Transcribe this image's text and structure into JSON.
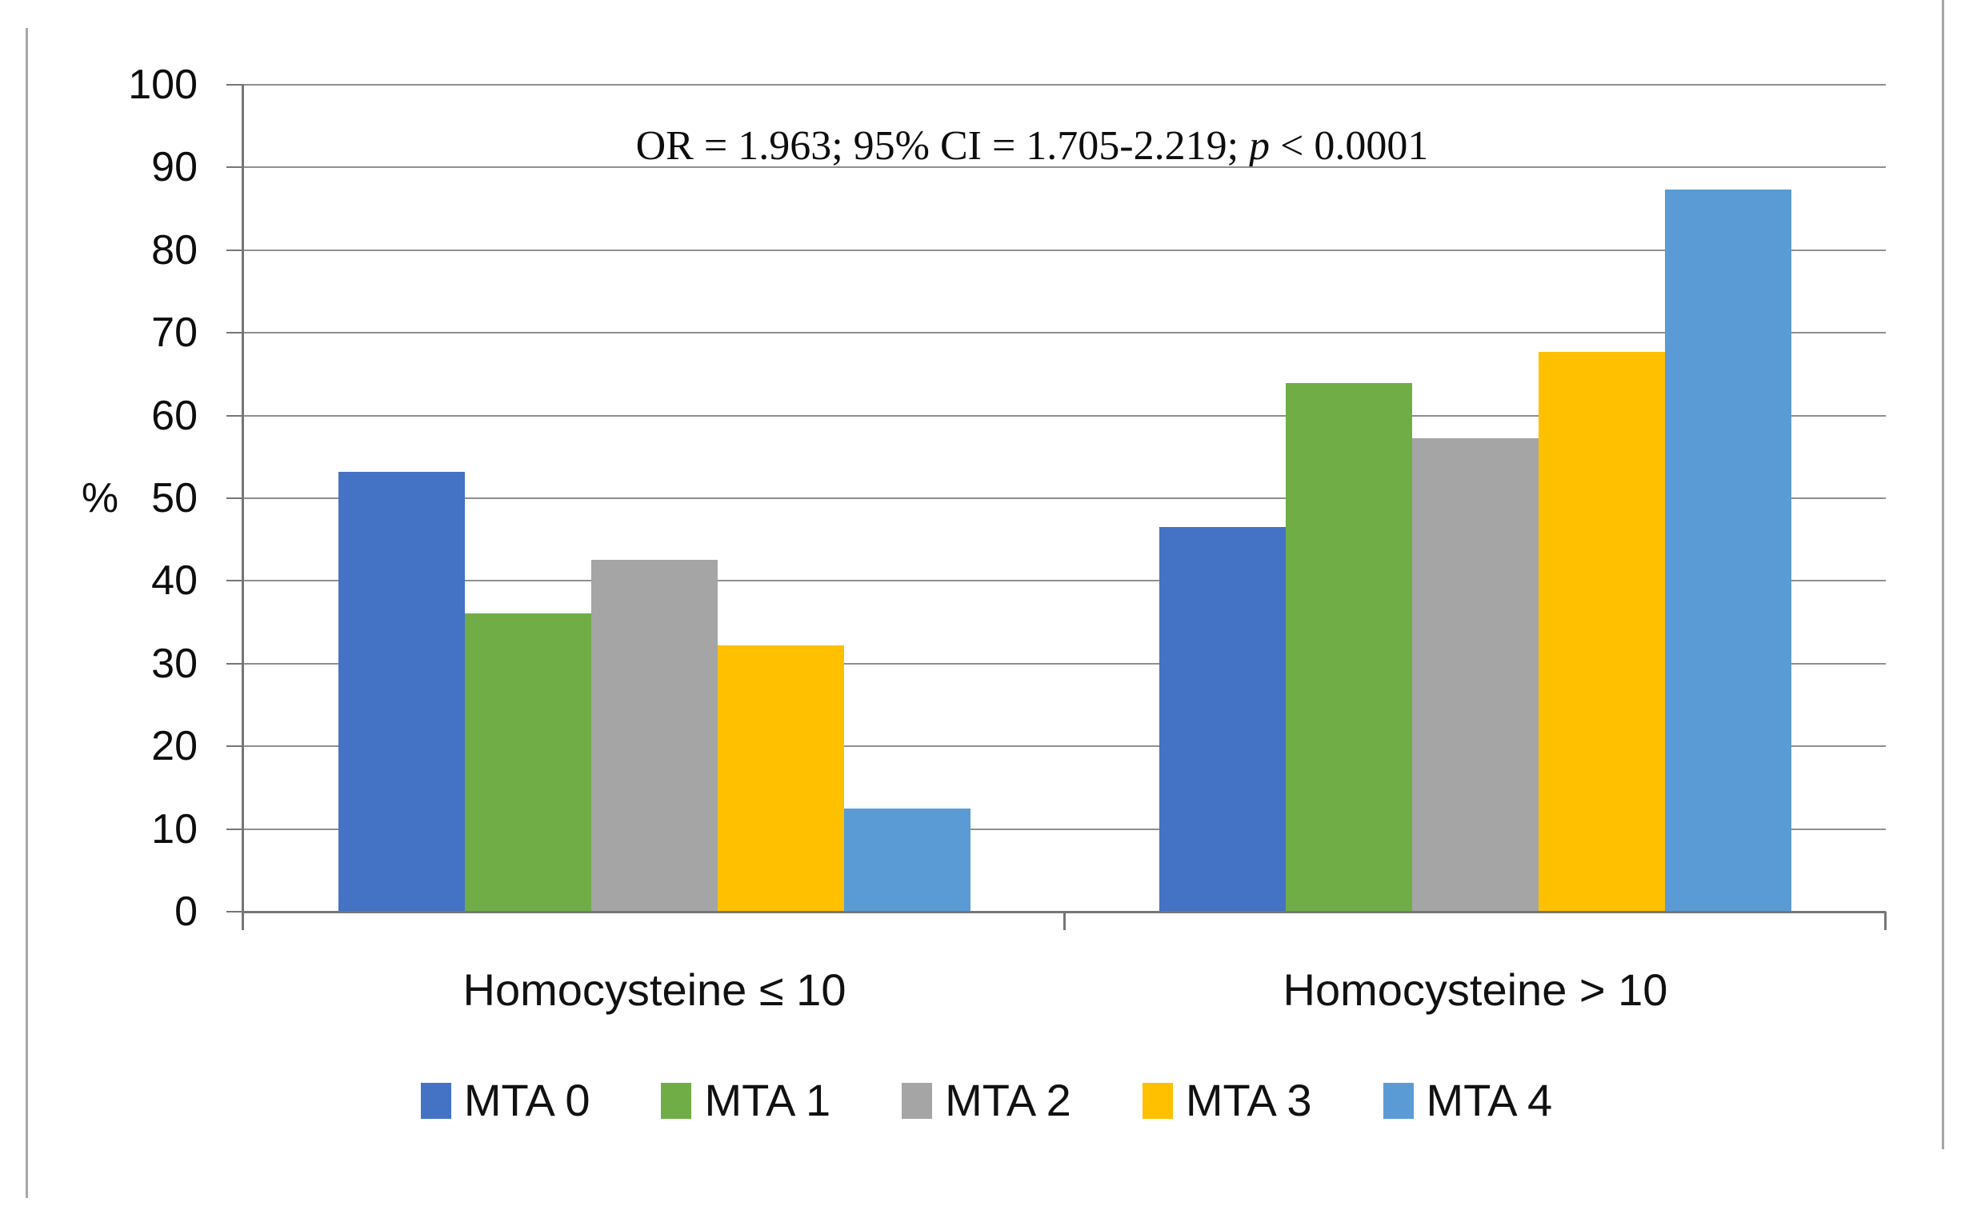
{
  "figure": {
    "border_color": "#a6a6a6",
    "background": "#ffffff"
  },
  "chart_data": {
    "type": "bar",
    "title": "",
    "annotation": {
      "full": "OR = 1.963; 95% CI = 1.705-2.219; p < 0.0001",
      "prefix": "OR = 1.963; 95% CI = 1.705-2.219; ",
      "italic": "p",
      "suffix": " < 0.0001"
    },
    "categories": [
      "Homocysteine ≤ 10",
      "Homocysteine > 10"
    ],
    "series": [
      {
        "name": "MTA 0",
        "color": "#4472C4",
        "values": [
          53.2,
          46.5
        ]
      },
      {
        "name": "MTA 1",
        "color": "#70AD47",
        "values": [
          36.1,
          63.9
        ]
      },
      {
        "name": "MTA 2",
        "color": "#A5A5A5",
        "values": [
          42.6,
          57.3
        ]
      },
      {
        "name": "MTA 3",
        "color": "#FFC000",
        "values": [
          32.2,
          67.7
        ]
      },
      {
        "name": "MTA 4",
        "color": "#5B9BD5",
        "values": [
          12.5,
          87.3
        ]
      }
    ],
    "xlabel": "",
    "ylabel": "%",
    "ylim": [
      0,
      100
    ],
    "ytick_interval": 10,
    "yticks": [
      0,
      10,
      20,
      30,
      40,
      50,
      60,
      70,
      80,
      90,
      100
    ],
    "grid": true,
    "grid_color": "#8f8f8f",
    "axis_color": "#767676",
    "text_color": "#111111",
    "legend_position": "bottom"
  }
}
